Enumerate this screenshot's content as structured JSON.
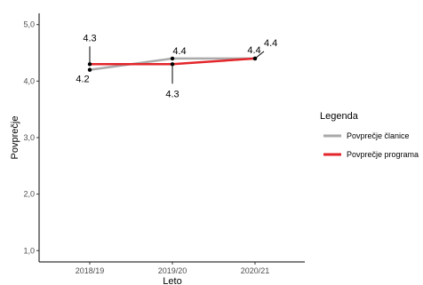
{
  "chart_data": {
    "type": "line",
    "title": "",
    "xlabel": "Leto",
    "ylabel": "Povprečje",
    "categories": [
      "2018/19",
      "2019/20",
      "2020/21"
    ],
    "ylim": [
      0.8,
      5.2
    ],
    "yticks": [
      1.0,
      2.0,
      3.0,
      4.0,
      5.0
    ],
    "ytick_labels": [
      "1,0",
      "2,0",
      "3,0",
      "4,0",
      "5,0"
    ],
    "grid": false,
    "legend": {
      "title": "Legenda",
      "placement": "right"
    },
    "series": [
      {
        "name": "Povprečje članice",
        "color": "#aaaaaa",
        "values": [
          4.2,
          4.4,
          4.4
        ],
        "labels": [
          "4.2",
          "4.4",
          "4.4"
        ]
      },
      {
        "name": "Povprečje programa",
        "color": "#e3262b",
        "values": [
          4.3,
          4.3,
          4.4
        ],
        "labels": [
          "4.3",
          "4.3",
          "4.4"
        ]
      }
    ]
  }
}
